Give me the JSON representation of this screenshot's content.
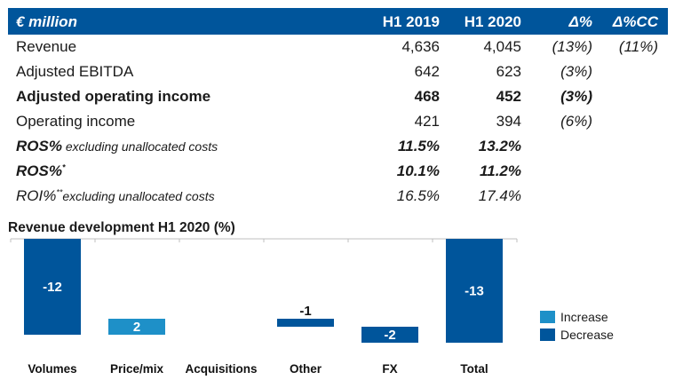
{
  "table": {
    "header": {
      "label": "€ million",
      "h1_2019": "H1 2019",
      "h1_2020": "H1 2020",
      "delta": "Δ%",
      "delta_cc": "Δ%CC"
    },
    "rows": [
      {
        "label": "Revenue",
        "h1_2019": "4,636",
        "h1_2020": "4,045",
        "delta": "(13%)",
        "delta_cc": "(11%)"
      },
      {
        "label": "Adjusted EBITDA",
        "h1_2019": "642",
        "h1_2020": "623",
        "delta": "(3%)",
        "delta_cc": ""
      },
      {
        "label": "Adjusted operating income",
        "h1_2019": "468",
        "h1_2020": "452",
        "delta": "(3%)",
        "delta_cc": ""
      },
      {
        "label": "Operating income",
        "h1_2019": "421",
        "h1_2020": "394",
        "delta": "(6%)",
        "delta_cc": ""
      },
      {
        "label": "ROS%",
        "suffix": " excluding unallocated costs",
        "h1_2019": "11.5%",
        "h1_2020": "13.2%"
      },
      {
        "label": "ROS%",
        "sup": "*",
        "h1_2019": "10.1%",
        "h1_2020": "11.2%"
      },
      {
        "label": "ROI%",
        "sup": "**",
        "suffix": "excluding unallocated costs",
        "h1_2019": "16.5%",
        "h1_2020": "17.4%"
      }
    ]
  },
  "colors": {
    "header": "#00559b",
    "increase": "#1e90c8",
    "decrease": "#00559b"
  },
  "chart_data": {
    "type": "bar",
    "subtype": "waterfall",
    "title": "Revenue development H1 2020 (%)",
    "categories": [
      "Volumes",
      "Price/mix",
      "Acquisitions",
      "Other",
      "FX",
      "Total"
    ],
    "values": [
      -12,
      2,
      0,
      -1,
      -2,
      -13
    ],
    "value_labels": [
      "-12",
      "2",
      "",
      "-1",
      "-2",
      "-13"
    ],
    "kinds": [
      "decrease",
      "increase",
      "none",
      "decrease",
      "decrease",
      "decrease"
    ],
    "legend": [
      {
        "name": "Increase",
        "color": "#1e90c8"
      },
      {
        "name": "Decrease",
        "color": "#00559b"
      }
    ],
    "legend_position": "right",
    "xlabel": "",
    "ylabel": "",
    "grid": false
  }
}
